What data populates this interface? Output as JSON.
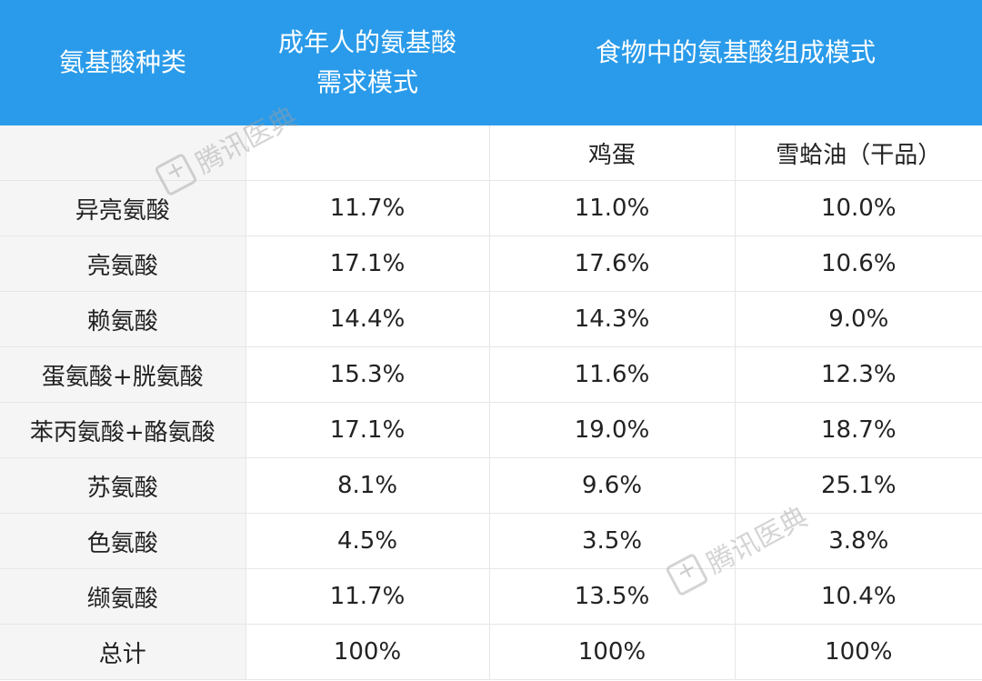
{
  "header": {
    "col0": "氨基酸种类",
    "col1_line1": "成年人的氨基酸",
    "col1_line2": "需求模式",
    "col2": "食物中的氨基酸组成模式"
  },
  "subheader": {
    "egg": "鸡蛋",
    "hasma": "雪蛤油（干品）"
  },
  "rows": [
    {
      "name": "异亮氨酸",
      "adult": "11.7%",
      "egg": "11.0%",
      "hasma": "10.0%"
    },
    {
      "name": "亮氨酸",
      "adult": "17.1%",
      "egg": "17.6%",
      "hasma": "10.6%"
    },
    {
      "name": "赖氨酸",
      "adult": "14.4%",
      "egg": "14.3%",
      "hasma": "9.0%"
    },
    {
      "name": "蛋氨酸+胱氨酸",
      "adult": "15.3%",
      "egg": "11.6%",
      "hasma": "12.3%"
    },
    {
      "name": "苯丙氨酸+酪氨酸",
      "adult": "17.1%",
      "egg": "19.0%",
      "hasma": "18.7%"
    },
    {
      "name": "苏氨酸",
      "adult": "8.1%",
      "egg": "9.6%",
      "hasma": "25.1%"
    },
    {
      "name": "色氨酸",
      "adult": "4.5%",
      "egg": "3.5%",
      "hasma": "3.8%"
    },
    {
      "name": "缬氨酸",
      "adult": "11.7%",
      "egg": "13.5%",
      "hasma": "10.4%"
    },
    {
      "name": "总计",
      "adult": "100%",
      "egg": "100%",
      "hasma": "100%"
    }
  ],
  "watermark": {
    "text": "腾讯医典",
    "icon": "medical-cross-icon"
  }
}
